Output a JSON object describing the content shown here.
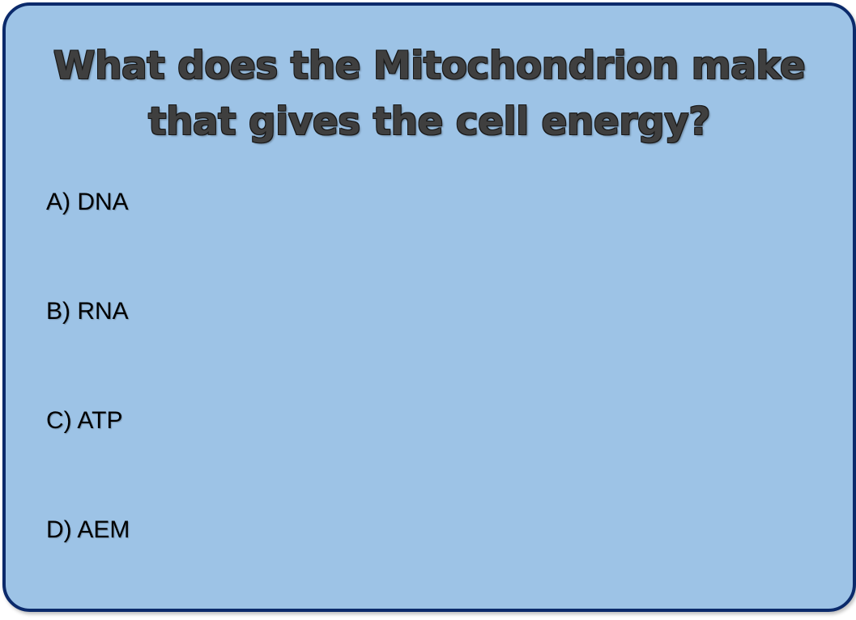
{
  "question": {
    "text": "What does the Mitochondrion make that gives the cell energy?"
  },
  "options": [
    {
      "label": "A) DNA"
    },
    {
      "label": "B) RNA"
    },
    {
      "label": "C) ATP"
    },
    {
      "label": "D) AEM"
    }
  ],
  "colors": {
    "card_background": "#9dc3e6",
    "card_border": "#0b2a6b",
    "question_text": "#3f3f3f",
    "option_text": "#000000"
  }
}
